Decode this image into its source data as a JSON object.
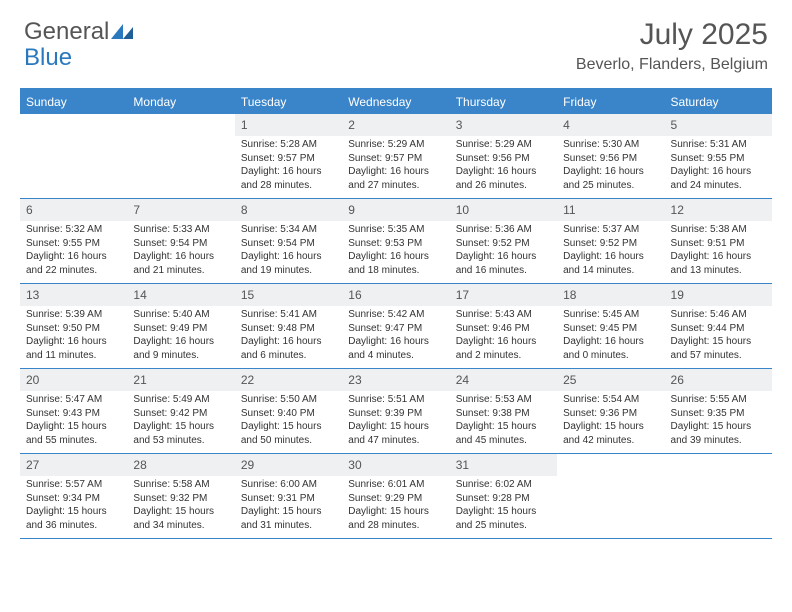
{
  "logo": {
    "text1": "General",
    "text2": "Blue"
  },
  "colors": {
    "header_bar": "#3a85c9",
    "daynum_bg": "#eef0f2",
    "text_dark": "#333333",
    "text_mid": "#555555",
    "logo_blue": "#2a78bd"
  },
  "title": "July 2025",
  "location": "Beverlo, Flanders, Belgium",
  "weekdays": [
    "Sunday",
    "Monday",
    "Tuesday",
    "Wednesday",
    "Thursday",
    "Friday",
    "Saturday"
  ],
  "weeks": [
    [
      {
        "n": "",
        "sr": "",
        "ss": "",
        "dl": ""
      },
      {
        "n": "",
        "sr": "",
        "ss": "",
        "dl": ""
      },
      {
        "n": "1",
        "sr": "Sunrise: 5:28 AM",
        "ss": "Sunset: 9:57 PM",
        "dl": "Daylight: 16 hours and 28 minutes."
      },
      {
        "n": "2",
        "sr": "Sunrise: 5:29 AM",
        "ss": "Sunset: 9:57 PM",
        "dl": "Daylight: 16 hours and 27 minutes."
      },
      {
        "n": "3",
        "sr": "Sunrise: 5:29 AM",
        "ss": "Sunset: 9:56 PM",
        "dl": "Daylight: 16 hours and 26 minutes."
      },
      {
        "n": "4",
        "sr": "Sunrise: 5:30 AM",
        "ss": "Sunset: 9:56 PM",
        "dl": "Daylight: 16 hours and 25 minutes."
      },
      {
        "n": "5",
        "sr": "Sunrise: 5:31 AM",
        "ss": "Sunset: 9:55 PM",
        "dl": "Daylight: 16 hours and 24 minutes."
      }
    ],
    [
      {
        "n": "6",
        "sr": "Sunrise: 5:32 AM",
        "ss": "Sunset: 9:55 PM",
        "dl": "Daylight: 16 hours and 22 minutes."
      },
      {
        "n": "7",
        "sr": "Sunrise: 5:33 AM",
        "ss": "Sunset: 9:54 PM",
        "dl": "Daylight: 16 hours and 21 minutes."
      },
      {
        "n": "8",
        "sr": "Sunrise: 5:34 AM",
        "ss": "Sunset: 9:54 PM",
        "dl": "Daylight: 16 hours and 19 minutes."
      },
      {
        "n": "9",
        "sr": "Sunrise: 5:35 AM",
        "ss": "Sunset: 9:53 PM",
        "dl": "Daylight: 16 hours and 18 minutes."
      },
      {
        "n": "10",
        "sr": "Sunrise: 5:36 AM",
        "ss": "Sunset: 9:52 PM",
        "dl": "Daylight: 16 hours and 16 minutes."
      },
      {
        "n": "11",
        "sr": "Sunrise: 5:37 AM",
        "ss": "Sunset: 9:52 PM",
        "dl": "Daylight: 16 hours and 14 minutes."
      },
      {
        "n": "12",
        "sr": "Sunrise: 5:38 AM",
        "ss": "Sunset: 9:51 PM",
        "dl": "Daylight: 16 hours and 13 minutes."
      }
    ],
    [
      {
        "n": "13",
        "sr": "Sunrise: 5:39 AM",
        "ss": "Sunset: 9:50 PM",
        "dl": "Daylight: 16 hours and 11 minutes."
      },
      {
        "n": "14",
        "sr": "Sunrise: 5:40 AM",
        "ss": "Sunset: 9:49 PM",
        "dl": "Daylight: 16 hours and 9 minutes."
      },
      {
        "n": "15",
        "sr": "Sunrise: 5:41 AM",
        "ss": "Sunset: 9:48 PM",
        "dl": "Daylight: 16 hours and 6 minutes."
      },
      {
        "n": "16",
        "sr": "Sunrise: 5:42 AM",
        "ss": "Sunset: 9:47 PM",
        "dl": "Daylight: 16 hours and 4 minutes."
      },
      {
        "n": "17",
        "sr": "Sunrise: 5:43 AM",
        "ss": "Sunset: 9:46 PM",
        "dl": "Daylight: 16 hours and 2 minutes."
      },
      {
        "n": "18",
        "sr": "Sunrise: 5:45 AM",
        "ss": "Sunset: 9:45 PM",
        "dl": "Daylight: 16 hours and 0 minutes."
      },
      {
        "n": "19",
        "sr": "Sunrise: 5:46 AM",
        "ss": "Sunset: 9:44 PM",
        "dl": "Daylight: 15 hours and 57 minutes."
      }
    ],
    [
      {
        "n": "20",
        "sr": "Sunrise: 5:47 AM",
        "ss": "Sunset: 9:43 PM",
        "dl": "Daylight: 15 hours and 55 minutes."
      },
      {
        "n": "21",
        "sr": "Sunrise: 5:49 AM",
        "ss": "Sunset: 9:42 PM",
        "dl": "Daylight: 15 hours and 53 minutes."
      },
      {
        "n": "22",
        "sr": "Sunrise: 5:50 AM",
        "ss": "Sunset: 9:40 PM",
        "dl": "Daylight: 15 hours and 50 minutes."
      },
      {
        "n": "23",
        "sr": "Sunrise: 5:51 AM",
        "ss": "Sunset: 9:39 PM",
        "dl": "Daylight: 15 hours and 47 minutes."
      },
      {
        "n": "24",
        "sr": "Sunrise: 5:53 AM",
        "ss": "Sunset: 9:38 PM",
        "dl": "Daylight: 15 hours and 45 minutes."
      },
      {
        "n": "25",
        "sr": "Sunrise: 5:54 AM",
        "ss": "Sunset: 9:36 PM",
        "dl": "Daylight: 15 hours and 42 minutes."
      },
      {
        "n": "26",
        "sr": "Sunrise: 5:55 AM",
        "ss": "Sunset: 9:35 PM",
        "dl": "Daylight: 15 hours and 39 minutes."
      }
    ],
    [
      {
        "n": "27",
        "sr": "Sunrise: 5:57 AM",
        "ss": "Sunset: 9:34 PM",
        "dl": "Daylight: 15 hours and 36 minutes."
      },
      {
        "n": "28",
        "sr": "Sunrise: 5:58 AM",
        "ss": "Sunset: 9:32 PM",
        "dl": "Daylight: 15 hours and 34 minutes."
      },
      {
        "n": "29",
        "sr": "Sunrise: 6:00 AM",
        "ss": "Sunset: 9:31 PM",
        "dl": "Daylight: 15 hours and 31 minutes."
      },
      {
        "n": "30",
        "sr": "Sunrise: 6:01 AM",
        "ss": "Sunset: 9:29 PM",
        "dl": "Daylight: 15 hours and 28 minutes."
      },
      {
        "n": "31",
        "sr": "Sunrise: 6:02 AM",
        "ss": "Sunset: 9:28 PM",
        "dl": "Daylight: 15 hours and 25 minutes."
      },
      {
        "n": "",
        "sr": "",
        "ss": "",
        "dl": ""
      },
      {
        "n": "",
        "sr": "",
        "ss": "",
        "dl": ""
      }
    ]
  ]
}
